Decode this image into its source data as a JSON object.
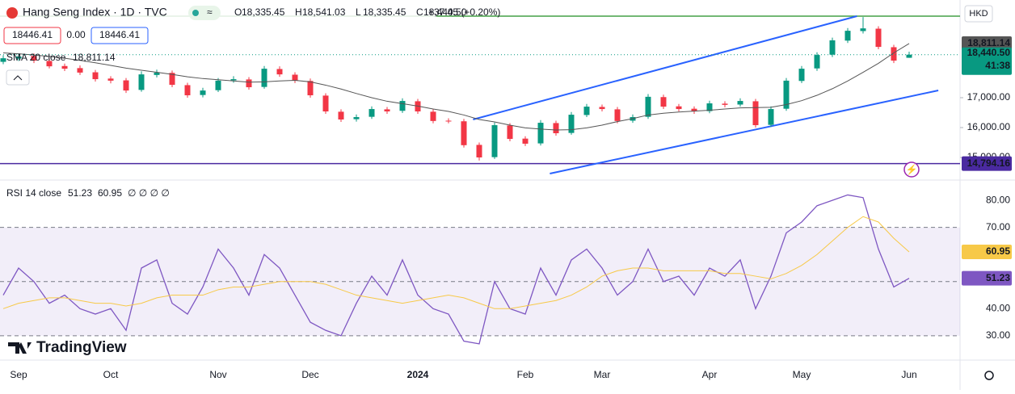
{
  "header": {
    "title": "Hang Seng Index · 1D · TVC",
    "ohlc": [
      "O",
      "18,335.45",
      "H",
      "18,541.03",
      "L",
      "18,335.45",
      "C",
      "18,440.50"
    ],
    "change": "+37.45 (+0.20%)",
    "inputs": [
      "18446.41",
      "0.00",
      "18446.41"
    ],
    "sma_value": "18,811.14",
    "rsi_values": [
      "51.23",
      "60.95"
    ],
    "rsi_extra": "∅ ∅ ∅ ∅",
    "currency": "HKD",
    "countdown": "41:38",
    "brand": "TradingView"
  },
  "chart_data": [
    {
      "type": "candlestick",
      "title": "SMA 20 close",
      "categories": [
        null,
        "Sep",
        null,
        null,
        null,
        null,
        null,
        "Oct",
        null,
        null,
        null,
        null,
        null,
        null,
        "Nov",
        null,
        null,
        null,
        null,
        null,
        "Dec",
        null,
        null,
        null,
        null,
        null,
        null,
        "2024",
        null,
        null,
        null,
        null,
        null,
        null,
        "Feb",
        null,
        null,
        null,
        null,
        "Mar",
        null,
        null,
        null,
        null,
        null,
        null,
        "Apr",
        null,
        null,
        null,
        null,
        null,
        "May",
        null,
        null,
        null,
        null,
        null,
        null,
        "Jun"
      ],
      "open": [
        18200,
        18310,
        18400,
        18230,
        18060,
        17990,
        17850,
        17640,
        17580,
        17260,
        17760,
        17830,
        17420,
        17090,
        17250,
        17580,
        17610,
        17360,
        17960,
        17770,
        17560,
        17070,
        16530,
        16280,
        16360,
        16610,
        16560,
        16880,
        16530,
        16230,
        16210,
        15420,
        15010,
        16070,
        15630,
        15470,
        16150,
        15820,
        16420,
        16690,
        16610,
        16230,
        16360,
        17020,
        16710,
        16630,
        16550,
        16800,
        16770,
        16880,
        16090,
        16630,
        17560,
        17980,
        18440,
        18910,
        19230,
        19310,
        18690,
        18335.45
      ],
      "high": [
        18420,
        18470,
        18480,
        18310,
        18140,
        18080,
        17930,
        17720,
        17660,
        17880,
        17940,
        17910,
        17500,
        17330,
        17660,
        17720,
        17690,
        18060,
        18050,
        17850,
        17640,
        17150,
        16610,
        16440,
        16710,
        16690,
        16980,
        16960,
        16610,
        16310,
        16290,
        15500,
        16170,
        16150,
        15710,
        16250,
        16230,
        16520,
        16790,
        16770,
        16690,
        16440,
        17120,
        17100,
        16790,
        16710,
        16900,
        16880,
        16980,
        16960,
        16710,
        17660,
        18060,
        18520,
        19010,
        19330,
        19700,
        19390,
        18770,
        18541.03
      ],
      "low": [
        18120,
        18230,
        18160,
        17980,
        17890,
        17760,
        17540,
        17480,
        17160,
        17200,
        17680,
        17350,
        17000,
        17010,
        17190,
        17500,
        17270,
        17300,
        17700,
        17490,
        17000,
        16460,
        16190,
        16200,
        16290,
        16460,
        16490,
        16460,
        16140,
        16140,
        15330,
        14900,
        14950,
        15540,
        15380,
        15400,
        15730,
        15760,
        16350,
        16540,
        16140,
        16160,
        16290,
        16620,
        16540,
        16460,
        16480,
        16680,
        16700,
        16000,
        16020,
        16560,
        17490,
        17900,
        18360,
        18830,
        19150,
        18620,
        18160,
        18335.45
      ],
      "close": [
        18320,
        18380,
        18240,
        18050,
        17970,
        17840,
        17620,
        17570,
        17240,
        17780,
        17840,
        17430,
        17080,
        17240,
        17570,
        17620,
        17350,
        17970,
        17780,
        17570,
        17080,
        16540,
        16270,
        16350,
        16620,
        16540,
        16890,
        16540,
        16220,
        16220,
        15410,
        15000,
        16080,
        15620,
        15460,
        16160,
        15810,
        16430,
        16700,
        16620,
        16220,
        16350,
        17030,
        16700,
        16620,
        16540,
        16810,
        16760,
        16890,
        16080,
        16620,
        17570,
        17970,
        18430,
        18920,
        19240,
        19320,
        18700,
        18240,
        18440.5
      ],
      "up_color": "#089981",
      "down_color": "#f23645",
      "series": [
        {
          "color": "#555555",
          "values": [
            18500,
            18470,
            18430,
            18380,
            18320,
            18250,
            18170,
            18080,
            17990,
            17920,
            17850,
            17780,
            17700,
            17640,
            17600,
            17560,
            17520,
            17530,
            17560,
            17580,
            17530,
            17420,
            17290,
            17140,
            17000,
            16880,
            16800,
            16720,
            16620,
            16540,
            16420,
            16270,
            16190,
            16080,
            15990,
            15950,
            15920,
            15930,
            15990,
            16080,
            16200,
            16300,
            16420,
            16480,
            16520,
            16550,
            16580,
            16620,
            16660,
            16670,
            16680,
            16770,
            16900,
            17080,
            17300,
            17560,
            17850,
            18150,
            18500,
            18811.14
          ]
        }
      ],
      "ylim": [
        14270,
        20270
      ],
      "yticks": [
        {
          "value": 15000,
          "label": "15,000.00"
        },
        {
          "value": 16000,
          "label": "16,000.00"
        },
        {
          "value": 17000,
          "label": "17,000.00"
        }
      ],
      "price_labels": [
        {
          "value": 18811.14,
          "label": "18,811.14",
          "color": "#555555"
        },
        {
          "value": 18440.5,
          "label": "18,440.50",
          "color": "#089981"
        }
      ],
      "hlines": [
        {
          "value": 14794.16,
          "label": "14,794.16",
          "color": "#4a2aa0"
        },
        {
          "value": 19730,
          "color": "#43a047"
        }
      ],
      "trendlines": [
        {
          "x": [
            30.6,
            55.6
          ],
          "y": [
            16270,
            19730
          ],
          "color": "#2962ff"
        },
        {
          "x": [
            35.6,
            60.9
          ],
          "y": [
            14460,
            17243
          ],
          "color": "#2962ff"
        }
      ]
    },
    {
      "type": "line",
      "title": "RSI 14 close",
      "series": [
        {
          "color": "#7e57c2",
          "values": [
            45,
            55,
            50,
            42,
            45,
            40,
            38,
            40,
            32,
            55,
            58,
            42,
            38,
            48,
            62,
            55,
            45,
            60,
            55,
            45,
            35,
            32,
            30,
            42,
            52,
            45,
            58,
            45,
            40,
            38,
            28,
            27,
            50,
            40,
            38,
            55,
            45,
            58,
            62,
            55,
            45,
            50,
            62,
            50,
            52,
            45,
            55,
            52,
            58,
            40,
            52,
            68,
            72,
            78,
            80,
            82,
            81,
            62,
            48,
            51.23
          ],
          "value_labels": [
            "51.23"
          ]
        },
        {
          "color": "#f7c948",
          "values": [
            40,
            42,
            43,
            44,
            44,
            43,
            42,
            42,
            41,
            42,
            44,
            45,
            45,
            45,
            47,
            48,
            48,
            49,
            50,
            50,
            50,
            49,
            47,
            45,
            44,
            43,
            42,
            43,
            44,
            45,
            44,
            42,
            40,
            40,
            41,
            42,
            43,
            45,
            48,
            52,
            54,
            55,
            55,
            54,
            54,
            54,
            54,
            53,
            53,
            52,
            51,
            53,
            56,
            60,
            65,
            70,
            74,
            72,
            66,
            60.95
          ],
          "value_labels": [
            "60.95"
          ]
        }
      ],
      "ylim": [
        22.8,
        86.9
      ],
      "yticks": [
        {
          "value": 30,
          "label": "30.00"
        },
        {
          "value": 40,
          "label": "40.00"
        },
        {
          "value": 70,
          "label": "70.00"
        },
        {
          "value": 80,
          "label": "80.00"
        }
      ],
      "band": [
        30,
        70
      ],
      "levels": [
        70,
        50,
        30
      ]
    }
  ]
}
